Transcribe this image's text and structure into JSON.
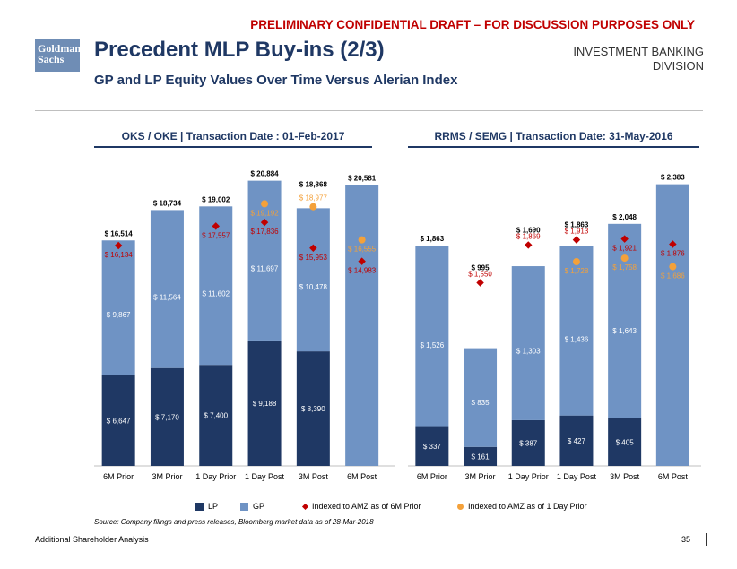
{
  "header": {
    "draft_notice": "PRELIMINARY CONFIDENTIAL DRAFT – FOR DISCUSSION PURPOSES ONLY",
    "logo_line1": "Goldman",
    "logo_line2": "Sachs",
    "title": "Precedent MLP Buy-ins (2/3)",
    "subtitle": "GP and LP Equity Values Over Time Versus Alerian Index",
    "division_line1": "INVESTMENT BANKING",
    "division_line2": "DIVISION"
  },
  "colors": {
    "lp": "#1f3864",
    "gp": "#6f93c4",
    "amz_6m": "#c00000",
    "amz_1d": "#f4a13a",
    "title": "#1f3864"
  },
  "chart_data": [
    {
      "type": "bar",
      "stacked": true,
      "title": "OKS / OKE | Transaction Date : 01-Feb-2017",
      "categories": [
        "6M Prior",
        "3M Prior",
        "1 Day Prior",
        "1 Day Post",
        "3M Post",
        "6M Post"
      ],
      "series": [
        {
          "name": "LP",
          "values": [
            6647,
            7170,
            7400,
            9188,
            8390,
            null
          ],
          "labels": [
            "$ 6,647",
            "$ 7,170",
            "$ 7,400",
            "$ 9,188",
            "$ 8,390",
            ""
          ]
        },
        {
          "name": "GP",
          "values": [
            9867,
            11564,
            11602,
            11697,
            10478,
            20581
          ],
          "labels": [
            "$ 9,867",
            "$ 11,564",
            "$ 11,602",
            "$ 11,697",
            "$ 10,478",
            ""
          ]
        }
      ],
      "totals": [
        16514,
        18734,
        19002,
        20884,
        18868,
        20581
      ],
      "total_labels": [
        "$ 16,514",
        "$ 18,734",
        "$ 19,002",
        "$ 20,884",
        "$ 18,868",
        "$ 20,581"
      ],
      "amz_6m": {
        "values": [
          16134,
          null,
          17557,
          17836,
          15953,
          14983
        ],
        "labels": [
          "$ 16,134",
          "",
          "$ 17,557",
          "$ 17,836",
          "$ 15,953",
          "$ 14,983"
        ]
      },
      "amz_1d": {
        "values": [
          null,
          null,
          null,
          19192,
          18977,
          16555
        ],
        "labels": [
          "",
          "",
          "",
          "$ 19,192",
          "$ 18,977",
          "$ 16,555"
        ]
      },
      "ylim": [
        0,
        22500
      ]
    },
    {
      "type": "bar",
      "stacked": true,
      "title": "RRMS / SEMG | Transaction Date: 31-May-2016",
      "categories": [
        "6M Prior",
        "3M Prior",
        "1 Day Prior",
        "1 Day Post",
        "3M Post",
        "6M Post"
      ],
      "series": [
        {
          "name": "LP",
          "values": [
            337,
            161,
            387,
            427,
            405,
            null
          ],
          "labels": [
            "$ 337",
            "$ 161",
            "$ 387",
            "$ 427",
            "$ 405",
            ""
          ]
        },
        {
          "name": "GP",
          "values": [
            1526,
            835,
            1303,
            1436,
            1643,
            2383
          ],
          "labels": [
            "$ 1,526",
            "$ 835",
            "$ 1,303",
            "$ 1,436",
            "$ 1,643",
            ""
          ]
        }
      ],
      "totals": [
        1863,
        995,
        1690,
        1863,
        2048,
        2383
      ],
      "total_labels": [
        "$ 1,863",
        "$ 995",
        "$ 1,690",
        "$ 1,863",
        "$ 2,048",
        "$ 2,383"
      ],
      "amz_6m": {
        "values": [
          null,
          1550,
          1869,
          1913,
          1921,
          1876
        ],
        "labels": [
          "",
          "$ 1,550",
          "$ 1,869",
          "$ 1,913",
          "$ 1,921",
          "$ 1,876"
        ]
      },
      "amz_1d": {
        "values": [
          null,
          null,
          null,
          1728,
          1758,
          1686
        ],
        "labels": [
          "",
          "",
          "",
          "$ 1,728",
          "$ 1,758",
          "$ 1,686"
        ]
      },
      "ylim": [
        0,
        2600
      ]
    }
  ],
  "legend": {
    "lp": "LP",
    "gp": "GP",
    "amz_6m": "Indexed to AMZ as of 6M Prior",
    "amz_1d": "Indexed to AMZ as of 1 Day Prior"
  },
  "footer": {
    "source": "Source: Company filings and press releases, Bloomberg market data as of 28-Mar-2018",
    "section": "Additional Shareholder Analysis",
    "page": "35"
  }
}
